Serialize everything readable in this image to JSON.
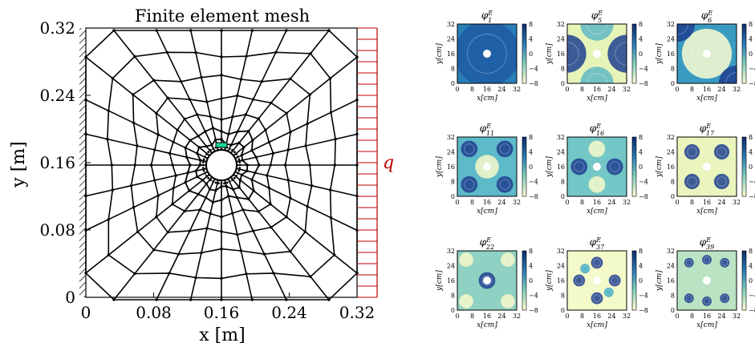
{
  "mesh": {
    "title": "Finite element mesh",
    "xlabel": "x [m]",
    "ylabel": "y [m]",
    "load_label": "q",
    "xticks": [
      "0",
      "0.08",
      "0.16",
      "0.24",
      "0.32"
    ],
    "yticks": [
      "0",
      "0.08",
      "0.16",
      "0.24",
      "0.32"
    ],
    "colors": {
      "mesh": "#000000",
      "load": "#c00000",
      "element": "#19d39a"
    }
  },
  "panels": {
    "xlabel": "x[cm]",
    "ylabel": "y[cm]",
    "ticks": [
      "0",
      "8",
      "16",
      "24",
      "32"
    ],
    "colorbar_ticks": [
      "8",
      "4",
      "0",
      "−4",
      "−8"
    ],
    "items": [
      {
        "base": "φ",
        "sup": "E",
        "sub": "1"
      },
      {
        "base": "φ",
        "sup": "E",
        "sub": "5"
      },
      {
        "base": "φ",
        "sup": "E",
        "sub": "6"
      },
      {
        "base": "φ",
        "sup": "E",
        "sub": "11"
      },
      {
        "base": "φ",
        "sup": "E",
        "sub": "16"
      },
      {
        "base": "φ",
        "sup": "E",
        "sub": "17"
      },
      {
        "base": "φ",
        "sup": "E",
        "sub": "22"
      },
      {
        "base": "φ",
        "sup": "E",
        "sub": "37"
      },
      {
        "base": "φ",
        "sup": "E",
        "sub": "39"
      }
    ],
    "colors": {
      "dark": "#1e3f8f",
      "mid": "#3aa8c4",
      "light": "#f6f9c8"
    }
  }
}
